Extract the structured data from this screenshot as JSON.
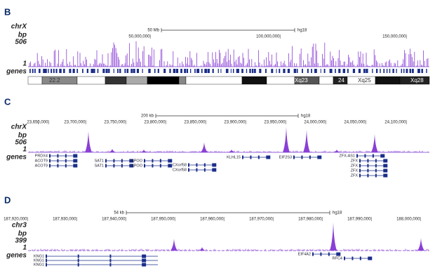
{
  "panels": [
    {
      "letter": "B",
      "chrom": "chrX",
      "unit": "bp",
      "max": "506",
      "min": "1",
      "genes": "genes",
      "scale": "50 Mb",
      "build": "hg18",
      "coords": [
        "50,000,000|",
        "100,000,000|",
        "150,000,000|"
      ],
      "bands": [
        "22.2",
        "q21.1",
        "Xq23",
        "24",
        "Xq25",
        "Xq28"
      ],
      "gene_names": []
    },
    {
      "letter": "C",
      "chrom": "chrX",
      "unit": "bp",
      "max": "506",
      "min": "1",
      "genes": "genes",
      "scale": "200 kb",
      "build": "hg18",
      "coords": [
        "|",
        "23,650,000|",
        "23,700,000|",
        "23,750,000|",
        "23,800,000|",
        "23,850,000|",
        "23,900,000|",
        "23,950,000|",
        "24,000,000|",
        "24,050,000|",
        "24,100,000|",
        "24,150,000|"
      ],
      "bands": [],
      "gene_names": [
        "PRDX4",
        "ACOT9",
        "ACOT9",
        "SAT1",
        "SAT1",
        "APOO",
        "APOO",
        "CXorf58",
        "CXorf58",
        "KLHL15",
        "EIF2S3",
        "ZFX-AS1",
        "ZFX",
        "ZFX",
        "ZFX",
        "ZFX"
      ]
    },
    {
      "letter": "D",
      "chrom": "chr3",
      "unit": "bp",
      "max": "399",
      "min": "1",
      "genes": "genes",
      "scale": "54 kb",
      "build": "hg18",
      "coords": [
        "187,920,000|",
        "187,930,000|",
        "187,940,000|",
        "187,950,000|",
        "187,960,000|",
        "187,970,000|",
        "187,980,000|",
        "187,990,000|",
        "188,000,000|"
      ],
      "bands": [],
      "gene_names": [
        "KNG1",
        "KNG1",
        "KNG1",
        "EIF4A2",
        "RFC4"
      ]
    }
  ]
}
